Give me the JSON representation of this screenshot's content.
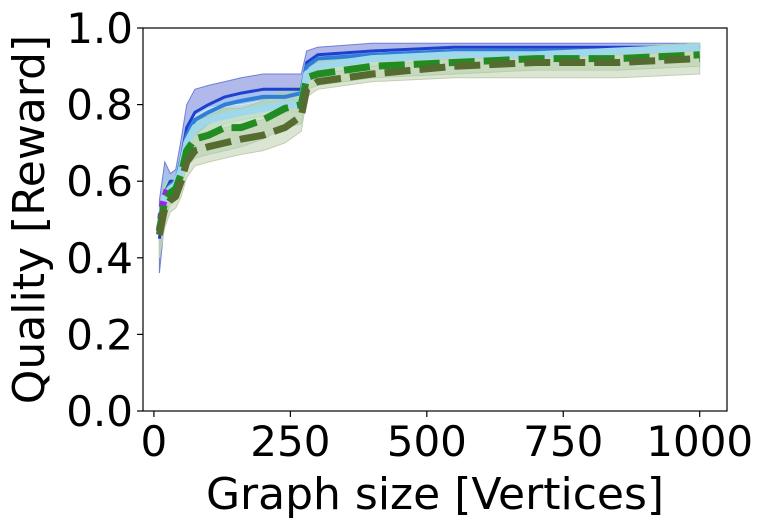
{
  "chart_data": {
    "type": "line",
    "xlabel": "Graph size [Vertices]",
    "ylabel": "Quality [Reward]",
    "xlim": [
      -20,
      1050
    ],
    "ylim": [
      0.0,
      1.0
    ],
    "xticks": [
      0,
      250,
      500,
      750,
      1000
    ],
    "xtick_labels": [
      "0",
      "250",
      "500",
      "750",
      "1000"
    ],
    "yticks": [
      0.0,
      0.2,
      0.4,
      0.6,
      0.8,
      1.0
    ],
    "ytick_labels": [
      "0.0",
      "0.2",
      "0.4",
      "0.6",
      "0.8",
      "1.0"
    ],
    "grid": false,
    "legend": "none",
    "series": [
      {
        "color": "#1f3fd0",
        "band_color": "#6f7fd8",
        "style": "solid",
        "width": 3,
        "x": [
          10,
          20,
          30,
          40,
          50,
          60,
          75,
          100,
          130,
          160,
          200,
          240,
          270,
          280,
          300,
          400,
          550,
          700,
          850,
          1000
        ],
        "y": [
          0.45,
          0.57,
          0.6,
          0.6,
          0.66,
          0.74,
          0.78,
          0.8,
          0.82,
          0.83,
          0.84,
          0.84,
          0.84,
          0.91,
          0.93,
          0.94,
          0.95,
          0.95,
          0.95,
          0.95
        ],
        "lower": [
          0.36,
          0.5,
          0.58,
          0.58,
          0.62,
          0.69,
          0.72,
          0.75,
          0.77,
          0.79,
          0.8,
          0.8,
          0.8,
          0.89,
          0.91,
          0.92,
          0.94,
          0.94,
          0.94,
          0.94
        ],
        "upper": [
          0.55,
          0.65,
          0.62,
          0.63,
          0.71,
          0.8,
          0.84,
          0.85,
          0.86,
          0.87,
          0.88,
          0.88,
          0.88,
          0.94,
          0.95,
          0.96,
          0.96,
          0.96,
          0.96,
          0.96
        ]
      },
      {
        "color": "#2f7fd8",
        "band_color": "#9fc8ee",
        "style": "solid",
        "width": 4,
        "x": [
          10,
          20,
          30,
          40,
          50,
          60,
          75,
          100,
          130,
          160,
          200,
          240,
          270,
          280,
          300,
          400,
          550,
          700,
          850,
          1000
        ],
        "y": [
          0.46,
          0.57,
          0.59,
          0.6,
          0.65,
          0.72,
          0.76,
          0.78,
          0.8,
          0.81,
          0.82,
          0.82,
          0.83,
          0.9,
          0.92,
          0.93,
          0.94,
          0.94,
          0.94,
          0.95
        ],
        "lower": [
          0.4,
          0.52,
          0.57,
          0.58,
          0.62,
          0.69,
          0.73,
          0.76,
          0.78,
          0.79,
          0.8,
          0.8,
          0.81,
          0.89,
          0.91,
          0.92,
          0.93,
          0.93,
          0.93,
          0.94
        ],
        "upper": [
          0.52,
          0.62,
          0.61,
          0.62,
          0.68,
          0.75,
          0.79,
          0.8,
          0.82,
          0.83,
          0.84,
          0.84,
          0.85,
          0.91,
          0.93,
          0.94,
          0.95,
          0.95,
          0.95,
          0.96
        ]
      },
      {
        "color": "#9fd8ea",
        "band_color": "#cfe9f3",
        "style": "solid",
        "width": 7,
        "x": [
          10,
          20,
          30,
          40,
          50,
          60,
          75,
          100,
          130,
          160,
          200,
          240,
          270,
          280,
          300,
          400,
          550,
          700,
          850,
          1000
        ],
        "y": [
          0.47,
          0.56,
          0.58,
          0.59,
          0.63,
          0.7,
          0.74,
          0.76,
          0.77,
          0.78,
          0.79,
          0.8,
          0.8,
          0.88,
          0.9,
          0.92,
          0.93,
          0.93,
          0.94,
          0.95
        ],
        "lower": [
          0.42,
          0.52,
          0.56,
          0.57,
          0.6,
          0.67,
          0.71,
          0.73,
          0.75,
          0.76,
          0.77,
          0.78,
          0.78,
          0.86,
          0.88,
          0.9,
          0.92,
          0.92,
          0.93,
          0.94
        ],
        "upper": [
          0.52,
          0.6,
          0.6,
          0.61,
          0.66,
          0.73,
          0.77,
          0.79,
          0.8,
          0.8,
          0.81,
          0.82,
          0.82,
          0.9,
          0.92,
          0.94,
          0.95,
          0.95,
          0.95,
          0.96
        ]
      },
      {
        "color": "#a020f0",
        "band_color": "#d8a0f0",
        "style": "dotted",
        "width": 7,
        "x": [
          10,
          15,
          20,
          25
        ],
        "y": [
          0.47,
          0.53,
          0.56,
          0.58
        ],
        "lower": [
          0.45,
          0.51,
          0.55,
          0.57
        ],
        "upper": [
          0.49,
          0.55,
          0.57,
          0.59
        ]
      },
      {
        "color": "#228b22",
        "band_color": "#a8cfa0",
        "style": "dashed",
        "width": 7,
        "x": [
          10,
          20,
          30,
          40,
          50,
          60,
          75,
          100,
          130,
          160,
          200,
          240,
          270,
          280,
          300,
          400,
          550,
          700,
          850,
          1000
        ],
        "y": [
          0.47,
          0.55,
          0.57,
          0.58,
          0.62,
          0.68,
          0.71,
          0.72,
          0.74,
          0.74,
          0.76,
          0.79,
          0.8,
          0.87,
          0.88,
          0.9,
          0.91,
          0.92,
          0.92,
          0.93
        ],
        "lower": [
          0.42,
          0.5,
          0.54,
          0.55,
          0.58,
          0.64,
          0.66,
          0.67,
          0.68,
          0.69,
          0.71,
          0.74,
          0.75,
          0.84,
          0.85,
          0.87,
          0.88,
          0.89,
          0.89,
          0.9
        ],
        "upper": [
          0.52,
          0.6,
          0.6,
          0.61,
          0.66,
          0.72,
          0.76,
          0.77,
          0.79,
          0.79,
          0.81,
          0.84,
          0.85,
          0.9,
          0.91,
          0.93,
          0.94,
          0.95,
          0.95,
          0.96
        ]
      },
      {
        "color": "#556b2f",
        "band_color": "#c0cfb0",
        "style": "dashed",
        "width": 7,
        "x": [
          10,
          20,
          30,
          40,
          50,
          60,
          75,
          100,
          130,
          160,
          200,
          240,
          270,
          280,
          300,
          400,
          550,
          700,
          850,
          1000
        ],
        "y": [
          0.46,
          0.53,
          0.55,
          0.56,
          0.6,
          0.65,
          0.68,
          0.69,
          0.7,
          0.71,
          0.72,
          0.74,
          0.77,
          0.84,
          0.86,
          0.88,
          0.9,
          0.91,
          0.91,
          0.92
        ],
        "lower": [
          0.4,
          0.48,
          0.52,
          0.53,
          0.56,
          0.61,
          0.64,
          0.65,
          0.66,
          0.67,
          0.68,
          0.7,
          0.73,
          0.82,
          0.84,
          0.86,
          0.87,
          0.87,
          0.87,
          0.88
        ],
        "upper": [
          0.52,
          0.58,
          0.58,
          0.59,
          0.64,
          0.69,
          0.72,
          0.73,
          0.74,
          0.75,
          0.76,
          0.78,
          0.81,
          0.87,
          0.88,
          0.9,
          0.92,
          0.93,
          0.93,
          0.94
        ]
      }
    ]
  }
}
